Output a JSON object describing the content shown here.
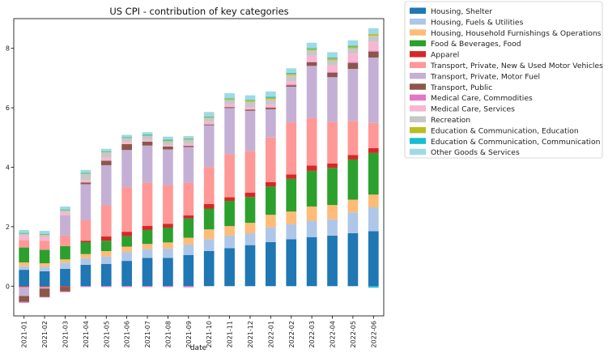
{
  "chart_data": {
    "type": "bar",
    "stacked": true,
    "title": "US CPI - contribution of key categories",
    "xlabel": "date",
    "ylabel": "",
    "ylim": [
      -1.0,
      9.0
    ],
    "yticks": [
      0,
      2,
      4,
      6,
      8
    ],
    "grid": false,
    "legend_position": "outside-right",
    "categories": [
      "2021-01",
      "2021-02",
      "2021-03",
      "2021-04",
      "2021-05",
      "2021-06",
      "2021-07",
      "2021-08",
      "2021-09",
      "2021-10",
      "2021-11",
      "2021-12",
      "2022-01",
      "2022-02",
      "2022-03",
      "2022-04",
      "2022-05",
      "2022-06"
    ],
    "series": [
      {
        "name": "Housing, Shelter",
        "color": "#1f77b4",
        "values": [
          0.55,
          0.5,
          0.58,
          0.72,
          0.75,
          0.85,
          0.95,
          0.95,
          1.05,
          1.18,
          1.28,
          1.38,
          1.48,
          1.58,
          1.65,
          1.7,
          1.78,
          1.85
        ]
      },
      {
        "name": "Housing, Fuels & Utilities",
        "color": "#aec7e8",
        "values": [
          0.12,
          0.15,
          0.2,
          0.22,
          0.25,
          0.3,
          0.3,
          0.32,
          0.35,
          0.4,
          0.42,
          0.4,
          0.5,
          0.5,
          0.55,
          0.55,
          0.7,
          0.8
        ]
      },
      {
        "name": "Housing, Household Furnishings & Operations",
        "color": "#ffbb78",
        "values": [
          0.13,
          0.12,
          0.12,
          0.14,
          0.18,
          0.18,
          0.17,
          0.2,
          0.23,
          0.33,
          0.32,
          0.35,
          0.42,
          0.43,
          0.48,
          0.48,
          0.43,
          0.43
        ]
      },
      {
        "name": "Food & Beverages, Food",
        "color": "#2ca02c",
        "values": [
          0.5,
          0.45,
          0.45,
          0.4,
          0.35,
          0.35,
          0.47,
          0.5,
          0.65,
          0.7,
          0.85,
          0.87,
          0.95,
          1.1,
          1.2,
          1.25,
          1.35,
          1.4
        ]
      },
      {
        "name": "Apparel",
        "color": "#d62728",
        "values": [
          -0.03,
          -0.03,
          -0.03,
          0.05,
          0.14,
          0.15,
          0.14,
          0.13,
          0.1,
          0.15,
          0.12,
          0.15,
          0.15,
          0.15,
          0.18,
          0.15,
          0.15,
          0.16
        ]
      },
      {
        "name": "Transport, Private, New & Used Motor Vehicles",
        "color": "#ff9896",
        "values": [
          0.25,
          0.3,
          0.35,
          0.7,
          1.05,
          1.5,
          1.45,
          1.3,
          1.1,
          1.25,
          1.45,
          1.4,
          1.5,
          1.75,
          1.6,
          1.4,
          1.15,
          0.85
        ]
      },
      {
        "name": "Transport, Private, Motor Fuel",
        "color": "#c5b0d5",
        "values": [
          -0.3,
          -0.05,
          0.68,
          1.2,
          1.35,
          1.25,
          1.25,
          1.2,
          1.2,
          1.4,
          1.55,
          1.35,
          0.95,
          1.2,
          1.75,
          1.5,
          1.75,
          2.2
        ]
      },
      {
        "name": "Transport, Public",
        "color": "#8c564b",
        "values": [
          -0.2,
          -0.28,
          -0.15,
          0.06,
          0.15,
          0.2,
          0.13,
          0.1,
          0.04,
          0.03,
          0.03,
          0.04,
          0.05,
          0.05,
          0.12,
          0.15,
          0.2,
          0.2
        ]
      },
      {
        "name": "Medical Care, Commodities",
        "color": "#e377c2",
        "values": [
          -0.03,
          -0.02,
          -0.02,
          -0.03,
          -0.03,
          -0.03,
          -0.03,
          -0.03,
          -0.04,
          0.01,
          0.01,
          0.01,
          0.02,
          0.02,
          0.02,
          0.03,
          0.03,
          0.03
        ]
      },
      {
        "name": "Medical Care, Services",
        "color": "#f7b6d2",
        "values": [
          0.15,
          0.15,
          0.1,
          0.08,
          0.1,
          0.07,
          0.06,
          0.05,
          0.06,
          0.07,
          0.08,
          0.08,
          0.1,
          0.12,
          0.2,
          0.22,
          0.28,
          0.3
        ]
      },
      {
        "name": "Recreation",
        "color": "#c7c7c7",
        "values": [
          0.05,
          0.05,
          0.06,
          0.2,
          0.18,
          0.12,
          0.13,
          0.12,
          0.14,
          0.14,
          0.15,
          0.17,
          0.17,
          0.2,
          0.18,
          0.17,
          0.18,
          0.2
        ]
      },
      {
        "name": "Education & Communication, Education",
        "color": "#bcbd22",
        "values": [
          0.02,
          0.02,
          0.02,
          0.02,
          0.02,
          0.02,
          0.02,
          0.03,
          0.03,
          0.03,
          0.04,
          0.05,
          0.05,
          0.05,
          0.05,
          0.06,
          0.06,
          0.06
        ]
      },
      {
        "name": "Education & Communication, Communication",
        "color": "#17becf",
        "values": [
          0.02,
          0.02,
          0.02,
          0.02,
          0.02,
          0.02,
          0.03,
          0.03,
          0.02,
          0.02,
          0.02,
          0.02,
          0.03,
          0.03,
          0.03,
          0.03,
          0.03,
          -0.05
        ]
      },
      {
        "name": "Other Goods & Services",
        "color": "#9edae5",
        "values": [
          0.1,
          0.1,
          0.1,
          0.1,
          0.08,
          0.08,
          0.08,
          0.1,
          0.08,
          0.15,
          0.17,
          0.15,
          0.18,
          0.15,
          0.18,
          0.18,
          0.18,
          0.2
        ]
      }
    ]
  }
}
